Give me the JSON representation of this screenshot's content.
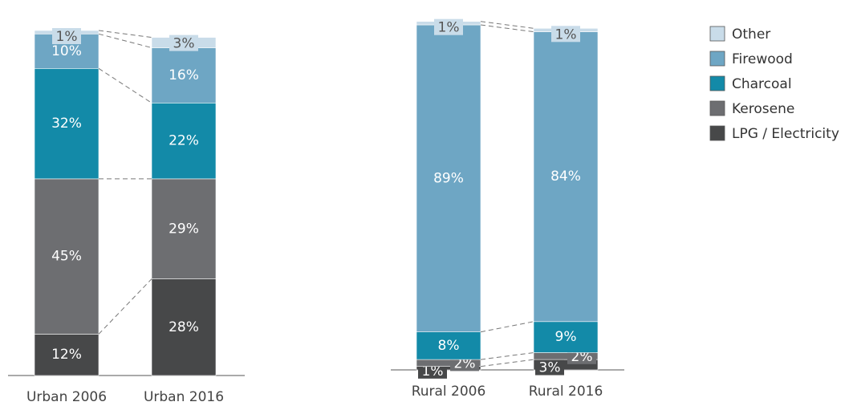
{
  "chart_data": {
    "type": "bar",
    "stacked": true,
    "categories": [
      "Urban 2006",
      "Urban 2016",
      "Rural 2006",
      "Rural 2016"
    ],
    "series": [
      {
        "name": "Other",
        "color": "#c9dce9",
        "values": [
          1,
          3,
          1,
          1
        ],
        "value_labels": [
          "1%",
          "3%",
          "1%",
          "1%"
        ]
      },
      {
        "name": "Firewood",
        "color": "#6ea6c4",
        "values": [
          10,
          16,
          89,
          84
        ],
        "value_labels": [
          "10%",
          "16%",
          "89%",
          "84%"
        ]
      },
      {
        "name": "Charcoal",
        "color": "#138aa8",
        "values": [
          32,
          22,
          8,
          9
        ],
        "value_labels": [
          "32%",
          "22%",
          "8%",
          "9%"
        ]
      },
      {
        "name": "Kerosene",
        "color": "#6d6e71",
        "values": [
          45,
          29,
          2,
          2
        ],
        "value_labels": [
          "45%",
          "29%",
          "2%",
          "2%"
        ]
      },
      {
        "name": "LPG / Electricity",
        "color": "#474849",
        "values": [
          12,
          28,
          1,
          3
        ],
        "value_labels": [
          "12%",
          "28%",
          "1%",
          "3%"
        ]
      }
    ]
  }
}
